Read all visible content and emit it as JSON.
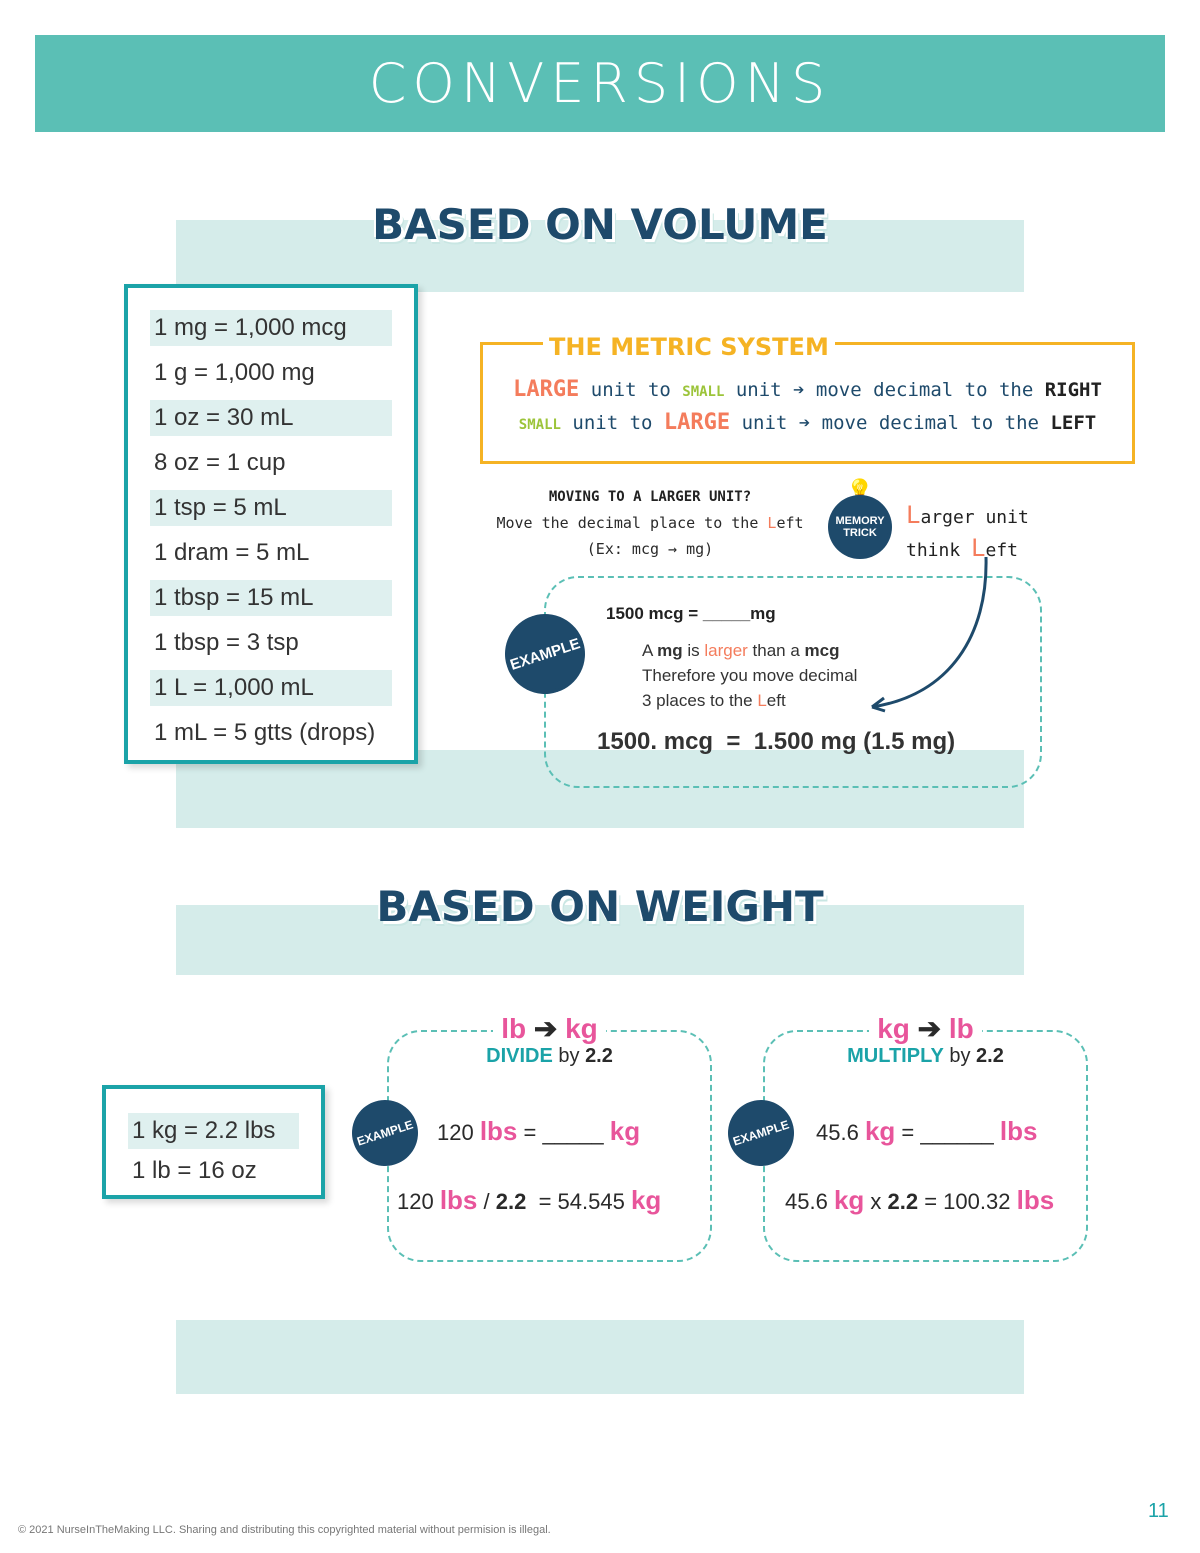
{
  "header": {
    "title": "CONVERSIONS"
  },
  "volume": {
    "title": "BASED ON VOLUME",
    "conversions": [
      "1 mg = 1,000 mcg",
      "1 g = 1,000 mg",
      "1 oz = 30 mL",
      "8 oz = 1 cup",
      "1 tsp = 5 mL",
      "1 dram = 5 mL",
      "1 tbsp = 15 mL",
      "1 tbsp = 3 tsp",
      "1 L = 1,000 mL",
      "1 mL = 5 gtts (drops)"
    ],
    "metric": {
      "title": "THE METRIC SYSTEM",
      "line1": {
        "a": "LARGE",
        "b": " unit to ",
        "c": "SMALL",
        "d": " unit ➔ move decimal to the ",
        "e": "RIGHT"
      },
      "line2": {
        "a": "SMALL",
        "b": " unit to ",
        "c": "LARGE",
        "d": " unit ➔ move decimal to the ",
        "e": "LEFT"
      }
    },
    "moving": {
      "title": "MOVING TO A LARGER UNIT?",
      "line1a": "Move the decimal place to the ",
      "line1b": "L",
      "line1c": "eft",
      "line2": "(Ex: mcg → mg)"
    },
    "memory": {
      "badge": "MEMORY TRICK",
      "l1a": "L",
      "l1b": "arger unit",
      "l2a": "think ",
      "l2b": "L",
      "l2c": "eft"
    },
    "example": {
      "badge": "EXAMPLE",
      "problem": "1500 mcg = _____mg",
      "e1a": "A ",
      "e1b": "mg",
      "e1c": " is ",
      "e1d": "larger",
      "e1e": " than a ",
      "e1f": "mcg",
      "e2": "Therefore you move decimal",
      "e3a": "3 places to the ",
      "e3b": "L",
      "e3c": "eft",
      "answer": "1500. mcg  =  1.500 mg (1.5 mg)"
    }
  },
  "weight": {
    "title": "BASED ON WEIGHT",
    "conversions": [
      "1 kg = 2.2 lbs",
      "1 lb = 16 oz"
    ],
    "left": {
      "h1": "lb",
      "h2": "kg",
      "op": "DIVIDE",
      "by": " by ",
      "factor": "2.2",
      "badge": "EXAMPLE",
      "p1": "120 ",
      "p2": "lbs",
      "p3": " = _____ ",
      "p4": "kg",
      "s1": "120 ",
      "s2": "lbs",
      "s3": " / ",
      "s4": "2.2",
      "s5": "  = 54.545 ",
      "s6": "kg"
    },
    "right": {
      "h1": "kg",
      "h2": "lb",
      "op": "MULTIPLY",
      "by": " by ",
      "factor": "2.2",
      "badge": "EXAMPLE",
      "p1": "45.6 ",
      "p2": "kg",
      "p3": " = ______ ",
      "p4": "lbs",
      "s1": "45.6 ",
      "s2": "kg",
      "s3": " x ",
      "s4": "2.2",
      "s5": " = 100.32 ",
      "s6": "lbs"
    }
  },
  "footer": {
    "copyright": "© 2021 NurseInTheMaking LLC. Sharing and distributing this copyrighted material without permision is illegal.",
    "page": "11"
  },
  "colors": {
    "header": "#5bbfb5",
    "navy": "#1e4a6b",
    "orange": "#f5b324",
    "salmon": "#f47c5c",
    "green": "#9cc43a",
    "pink": "#e8559b",
    "teal": "#1ba3a8"
  }
}
